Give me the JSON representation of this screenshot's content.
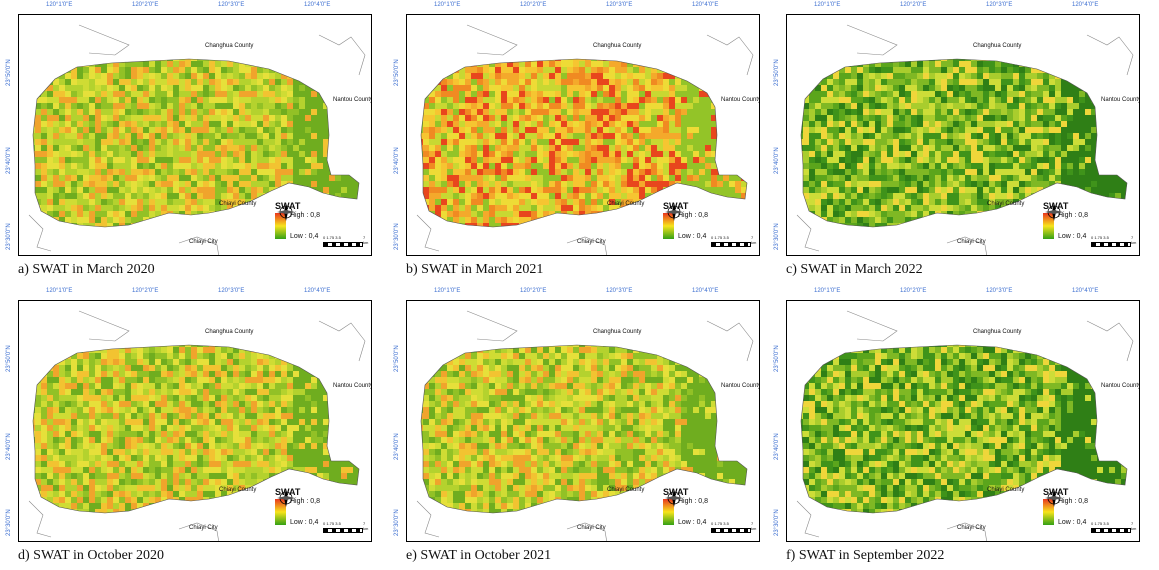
{
  "panels": [
    {
      "caption": "a) SWAT in March 2020",
      "palette": "mixed"
    },
    {
      "caption": "b) SWAT in March 2021",
      "palette": "warm"
    },
    {
      "caption": "c) SWAT in March 2022",
      "palette": "green"
    },
    {
      "caption": "d) SWAT in October 2020",
      "palette": "mixed"
    },
    {
      "caption": "e) SWAT in October 2021",
      "palette": "mixed"
    },
    {
      "caption": "f) SWAT in September 2022",
      "palette": "green"
    }
  ],
  "longitudes": [
    "120°1'0\"E",
    "120°2'0\"E",
    "120°3'0\"E",
    "120°4'0\"E"
  ],
  "latitudes": [
    "23°50'0\"N",
    "23°40'0\"N",
    "23°30'0\"N"
  ],
  "places": {
    "north": "Changhua County",
    "east": "Nantou County",
    "south": "Chiayi County",
    "city": "Chiayi City"
  },
  "legend": {
    "title": "SWAT",
    "high": "High : 0,8",
    "low": "Low : 0,4",
    "scale_ticks": "0  1.75 3.5",
    "scale_unit": "7 km",
    "colors": {
      "high": "#e8361d",
      "mid": "#f7e41c",
      "low": "#33a015"
    }
  }
}
